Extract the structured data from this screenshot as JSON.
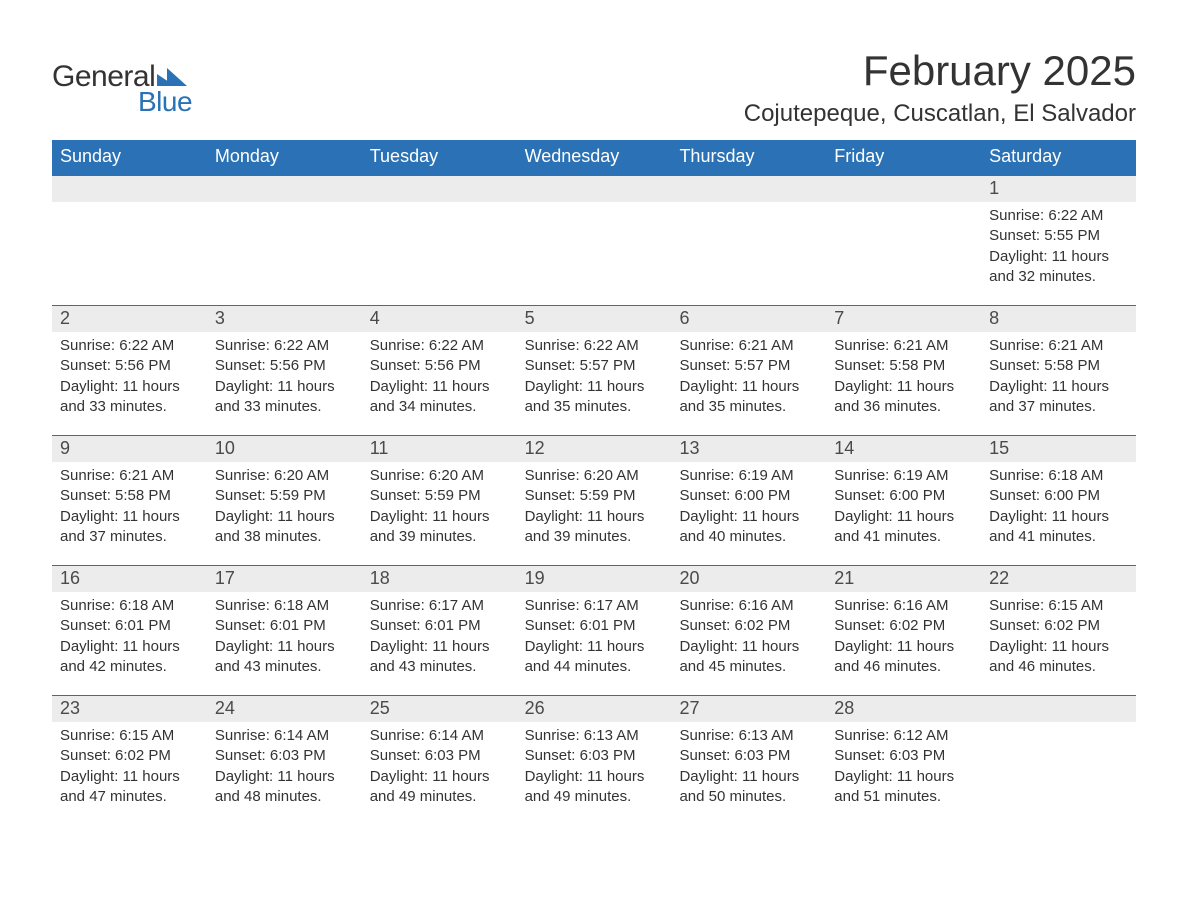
{
  "logo": {
    "word1": "General",
    "word2": "Blue"
  },
  "title": "February 2025",
  "location": "Cojutepeque, Cuscatlan, El Salvador",
  "colors": {
    "brand_blue": "#2a72b5",
    "header_bg": "#2a72b5",
    "header_text": "#ffffff",
    "daynum_bg": "#ececec",
    "text": "#333333",
    "page_bg": "#ffffff"
  },
  "typography": {
    "title_fontsize_pt": 32,
    "location_fontsize_pt": 18,
    "weekday_fontsize_pt": 14,
    "daynum_fontsize_pt": 14,
    "detail_fontsize_pt": 11
  },
  "weekdays": [
    "Sunday",
    "Monday",
    "Tuesday",
    "Wednesday",
    "Thursday",
    "Friday",
    "Saturday"
  ],
  "weeks": [
    [
      {
        "day": "",
        "sunrise": "",
        "sunset": "",
        "daylight": ""
      },
      {
        "day": "",
        "sunrise": "",
        "sunset": "",
        "daylight": ""
      },
      {
        "day": "",
        "sunrise": "",
        "sunset": "",
        "daylight": ""
      },
      {
        "day": "",
        "sunrise": "",
        "sunset": "",
        "daylight": ""
      },
      {
        "day": "",
        "sunrise": "",
        "sunset": "",
        "daylight": ""
      },
      {
        "day": "",
        "sunrise": "",
        "sunset": "",
        "daylight": ""
      },
      {
        "day": "1",
        "sunrise": "Sunrise: 6:22 AM",
        "sunset": "Sunset: 5:55 PM",
        "daylight": "Daylight: 11 hours and 32 minutes."
      }
    ],
    [
      {
        "day": "2",
        "sunrise": "Sunrise: 6:22 AM",
        "sunset": "Sunset: 5:56 PM",
        "daylight": "Daylight: 11 hours and 33 minutes."
      },
      {
        "day": "3",
        "sunrise": "Sunrise: 6:22 AM",
        "sunset": "Sunset: 5:56 PM",
        "daylight": "Daylight: 11 hours and 33 minutes."
      },
      {
        "day": "4",
        "sunrise": "Sunrise: 6:22 AM",
        "sunset": "Sunset: 5:56 PM",
        "daylight": "Daylight: 11 hours and 34 minutes."
      },
      {
        "day": "5",
        "sunrise": "Sunrise: 6:22 AM",
        "sunset": "Sunset: 5:57 PM",
        "daylight": "Daylight: 11 hours and 35 minutes."
      },
      {
        "day": "6",
        "sunrise": "Sunrise: 6:21 AM",
        "sunset": "Sunset: 5:57 PM",
        "daylight": "Daylight: 11 hours and 35 minutes."
      },
      {
        "day": "7",
        "sunrise": "Sunrise: 6:21 AM",
        "sunset": "Sunset: 5:58 PM",
        "daylight": "Daylight: 11 hours and 36 minutes."
      },
      {
        "day": "8",
        "sunrise": "Sunrise: 6:21 AM",
        "sunset": "Sunset: 5:58 PM",
        "daylight": "Daylight: 11 hours and 37 minutes."
      }
    ],
    [
      {
        "day": "9",
        "sunrise": "Sunrise: 6:21 AM",
        "sunset": "Sunset: 5:58 PM",
        "daylight": "Daylight: 11 hours and 37 minutes."
      },
      {
        "day": "10",
        "sunrise": "Sunrise: 6:20 AM",
        "sunset": "Sunset: 5:59 PM",
        "daylight": "Daylight: 11 hours and 38 minutes."
      },
      {
        "day": "11",
        "sunrise": "Sunrise: 6:20 AM",
        "sunset": "Sunset: 5:59 PM",
        "daylight": "Daylight: 11 hours and 39 minutes."
      },
      {
        "day": "12",
        "sunrise": "Sunrise: 6:20 AM",
        "sunset": "Sunset: 5:59 PM",
        "daylight": "Daylight: 11 hours and 39 minutes."
      },
      {
        "day": "13",
        "sunrise": "Sunrise: 6:19 AM",
        "sunset": "Sunset: 6:00 PM",
        "daylight": "Daylight: 11 hours and 40 minutes."
      },
      {
        "day": "14",
        "sunrise": "Sunrise: 6:19 AM",
        "sunset": "Sunset: 6:00 PM",
        "daylight": "Daylight: 11 hours and 41 minutes."
      },
      {
        "day": "15",
        "sunrise": "Sunrise: 6:18 AM",
        "sunset": "Sunset: 6:00 PM",
        "daylight": "Daylight: 11 hours and 41 minutes."
      }
    ],
    [
      {
        "day": "16",
        "sunrise": "Sunrise: 6:18 AM",
        "sunset": "Sunset: 6:01 PM",
        "daylight": "Daylight: 11 hours and 42 minutes."
      },
      {
        "day": "17",
        "sunrise": "Sunrise: 6:18 AM",
        "sunset": "Sunset: 6:01 PM",
        "daylight": "Daylight: 11 hours and 43 minutes."
      },
      {
        "day": "18",
        "sunrise": "Sunrise: 6:17 AM",
        "sunset": "Sunset: 6:01 PM",
        "daylight": "Daylight: 11 hours and 43 minutes."
      },
      {
        "day": "19",
        "sunrise": "Sunrise: 6:17 AM",
        "sunset": "Sunset: 6:01 PM",
        "daylight": "Daylight: 11 hours and 44 minutes."
      },
      {
        "day": "20",
        "sunrise": "Sunrise: 6:16 AM",
        "sunset": "Sunset: 6:02 PM",
        "daylight": "Daylight: 11 hours and 45 minutes."
      },
      {
        "day": "21",
        "sunrise": "Sunrise: 6:16 AM",
        "sunset": "Sunset: 6:02 PM",
        "daylight": "Daylight: 11 hours and 46 minutes."
      },
      {
        "day": "22",
        "sunrise": "Sunrise: 6:15 AM",
        "sunset": "Sunset: 6:02 PM",
        "daylight": "Daylight: 11 hours and 46 minutes."
      }
    ],
    [
      {
        "day": "23",
        "sunrise": "Sunrise: 6:15 AM",
        "sunset": "Sunset: 6:02 PM",
        "daylight": "Daylight: 11 hours and 47 minutes."
      },
      {
        "day": "24",
        "sunrise": "Sunrise: 6:14 AM",
        "sunset": "Sunset: 6:03 PM",
        "daylight": "Daylight: 11 hours and 48 minutes."
      },
      {
        "day": "25",
        "sunrise": "Sunrise: 6:14 AM",
        "sunset": "Sunset: 6:03 PM",
        "daylight": "Daylight: 11 hours and 49 minutes."
      },
      {
        "day": "26",
        "sunrise": "Sunrise: 6:13 AM",
        "sunset": "Sunset: 6:03 PM",
        "daylight": "Daylight: 11 hours and 49 minutes."
      },
      {
        "day": "27",
        "sunrise": "Sunrise: 6:13 AM",
        "sunset": "Sunset: 6:03 PM",
        "daylight": "Daylight: 11 hours and 50 minutes."
      },
      {
        "day": "28",
        "sunrise": "Sunrise: 6:12 AM",
        "sunset": "Sunset: 6:03 PM",
        "daylight": "Daylight: 11 hours and 51 minutes."
      },
      {
        "day": "",
        "sunrise": "",
        "sunset": "",
        "daylight": ""
      }
    ]
  ]
}
